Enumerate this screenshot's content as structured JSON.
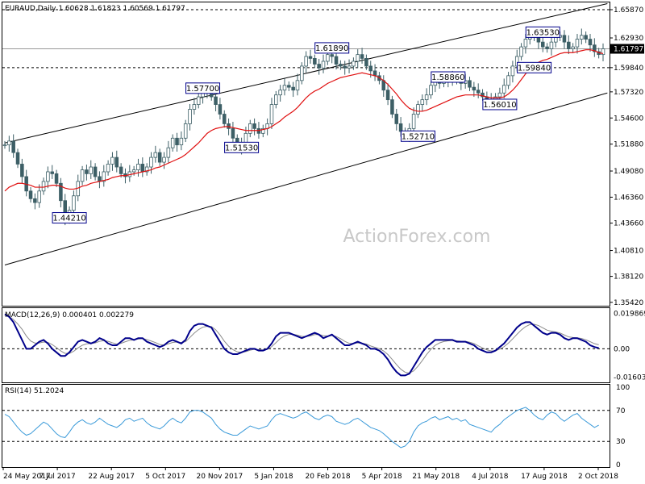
{
  "chart_data": [
    {
      "type": "candlestick",
      "title": "EURAUD,Daily  1.60628 1.61823 1.60569 1.61797",
      "current_price_label": "1.61797",
      "ylim": [
        1.354,
        1.6587
      ],
      "y_ticks": [
        1.3542,
        1.3812,
        1.4081,
        1.4366,
        1.4636,
        1.4908,
        1.5188,
        1.546,
        1.5732,
        1.5984,
        1.6293,
        1.6587
      ],
      "y_tick_labels": [
        "1.35420",
        "1.38120",
        "1.40810",
        "1.43660",
        "1.46360",
        "1.49080",
        "1.51880",
        "1.54600",
        "1.57320",
        "1.59840",
        "1.62930",
        "1.65870"
      ],
      "horizontal_levels": [
        {
          "price": 1.6587,
          "label": "1.65870",
          "style": "dashed"
        },
        {
          "price": 1.5984,
          "label": "1.59840",
          "style": "dashed"
        },
        {
          "price": 1.61797,
          "label": "1.61797",
          "style": "solid-grey"
        }
      ],
      "channel_upper": [
        {
          "x": 0,
          "price": 1.52
        },
        {
          "x": 140,
          "price": 1.665
        }
      ],
      "channel_lower": [
        {
          "x": 0,
          "price": 1.393
        },
        {
          "x": 140,
          "price": 1.572
        }
      ],
      "callouts": [
        {
          "label": "1.44210",
          "x": 15,
          "price": 1.4421
        },
        {
          "label": "1.57700",
          "x": 46,
          "price": 1.577
        },
        {
          "label": "1.51530",
          "x": 55,
          "price": 1.5153
        },
        {
          "label": "1.61890",
          "x": 76,
          "price": 1.6189
        },
        {
          "label": "1.52710",
          "x": 96,
          "price": 1.5271
        },
        {
          "label": "1.58860",
          "x": 103,
          "price": 1.5886
        },
        {
          "label": "1.56010",
          "x": 115,
          "price": 1.5601
        },
        {
          "label": "1.59840",
          "x": 123,
          "price": 1.5984
        },
        {
          "label": "1.63530",
          "x": 125,
          "price": 1.6353
        }
      ],
      "close_series": [
        1.518,
        1.522,
        1.51,
        1.498,
        1.485,
        1.47,
        1.462,
        1.458,
        1.47,
        1.48,
        1.49,
        1.488,
        1.478,
        1.46,
        1.44,
        1.45,
        1.465,
        1.48,
        1.492,
        1.488,
        1.495,
        1.485,
        1.48,
        1.49,
        1.498,
        1.505,
        1.495,
        1.488,
        1.485,
        1.49,
        1.492,
        1.498,
        1.49,
        1.495,
        1.505,
        1.51,
        1.5,
        1.505,
        1.515,
        1.525,
        1.518,
        1.525,
        1.54,
        1.555,
        1.56,
        1.568,
        1.572,
        1.575,
        1.568,
        1.56,
        1.55,
        1.54,
        1.535,
        1.525,
        1.52,
        1.515,
        1.53,
        1.54,
        1.535,
        1.53,
        1.535,
        1.54,
        1.56,
        1.57,
        1.575,
        1.58,
        1.578,
        1.575,
        1.585,
        1.6,
        1.61,
        1.608,
        1.602,
        1.598,
        1.605,
        1.612,
        1.61,
        1.602,
        1.6,
        1.598,
        1.6,
        1.605,
        1.612,
        1.608,
        1.6,
        1.595,
        1.59,
        1.585,
        1.575,
        1.565,
        1.55,
        1.54,
        1.532,
        1.528,
        1.535,
        1.55,
        1.56,
        1.565,
        1.57,
        1.58,
        1.585,
        1.582,
        1.585,
        1.588,
        1.585,
        1.588,
        1.582,
        1.585,
        1.578,
        1.575,
        1.572,
        1.568,
        1.565,
        1.562,
        1.568,
        1.572,
        1.58,
        1.59,
        1.6,
        1.61,
        1.62,
        1.628,
        1.632,
        1.63,
        1.625,
        1.62,
        1.618,
        1.625,
        1.63,
        1.632,
        1.625,
        1.618,
        1.62,
        1.628,
        1.632,
        1.628,
        1.622,
        1.615,
        1.612,
        1.618
      ],
      "ma_series": [
        1.47,
        1.474,
        1.476,
        1.478,
        1.478,
        1.477,
        1.476,
        1.474,
        1.474,
        1.474,
        1.475,
        1.476,
        1.476,
        1.475,
        1.473,
        1.472,
        1.472,
        1.473,
        1.475,
        1.476,
        1.478,
        1.479,
        1.48,
        1.481,
        1.482,
        1.484,
        1.485,
        1.486,
        1.486,
        1.487,
        1.488,
        1.489,
        1.49,
        1.491,
        1.492,
        1.494,
        1.495,
        1.497,
        1.499,
        1.501,
        1.503,
        1.505,
        1.508,
        1.512,
        1.516,
        1.52,
        1.525,
        1.53,
        1.533,
        1.535,
        1.536,
        1.537,
        1.537,
        1.536,
        1.535,
        1.534,
        1.533,
        1.533,
        1.533,
        1.533,
        1.534,
        1.535,
        1.537,
        1.54,
        1.543,
        1.547,
        1.55,
        1.553,
        1.557,
        1.562,
        1.567,
        1.571,
        1.574,
        1.576,
        1.579,
        1.582,
        1.584,
        1.586,
        1.588,
        1.589,
        1.59,
        1.591,
        1.592,
        1.593,
        1.592,
        1.591,
        1.59,
        1.588,
        1.585,
        1.581,
        1.576,
        1.571,
        1.565,
        1.56,
        1.556,
        1.554,
        1.553,
        1.553,
        1.554,
        1.556,
        1.558,
        1.56,
        1.562,
        1.564,
        1.566,
        1.568,
        1.569,
        1.57,
        1.57,
        1.57,
        1.57,
        1.569,
        1.568,
        1.567,
        1.567,
        1.567,
        1.568,
        1.571,
        1.575,
        1.58,
        1.586,
        1.592,
        1.597,
        1.601,
        1.604,
        1.606,
        1.607,
        1.609,
        1.611,
        1.613,
        1.614,
        1.614,
        1.614,
        1.615,
        1.616,
        1.617,
        1.617,
        1.616,
        1.614,
        1.613
      ],
      "watermark": "ActionForex.com"
    },
    {
      "type": "line",
      "title": "MACD(12,26,9) 0.000401 0.002279",
      "ylim": [
        -0.018,
        0.022
      ],
      "y_ticks": [
        0.019869,
        0.0,
        -0.01603
      ],
      "y_tick_labels": [
        "0.019869",
        "0.00",
        "-0.01603"
      ],
      "zero_line": 0.0,
      "macd_series": [
        0.0195,
        0.018,
        0.015,
        0.01,
        0.005,
        0.0,
        0.0,
        0.002,
        0.004,
        0.005,
        0.003,
        0.0,
        -0.002,
        -0.004,
        -0.004,
        -0.002,
        0.001,
        0.004,
        0.005,
        0.004,
        0.003,
        0.004,
        0.006,
        0.005,
        0.003,
        0.002,
        0.002,
        0.004,
        0.006,
        0.006,
        0.005,
        0.006,
        0.006,
        0.004,
        0.003,
        0.002,
        0.001,
        0.002,
        0.004,
        0.005,
        0.004,
        0.003,
        0.005,
        0.01,
        0.013,
        0.014,
        0.014,
        0.013,
        0.012,
        0.008,
        0.004,
        0.0,
        -0.002,
        -0.003,
        -0.003,
        -0.002,
        -0.001,
        0.0,
        0.0,
        -0.001,
        -0.001,
        0.0,
        0.003,
        0.007,
        0.009,
        0.009,
        0.009,
        0.008,
        0.007,
        0.006,
        0.007,
        0.008,
        0.009,
        0.008,
        0.006,
        0.007,
        0.008,
        0.006,
        0.004,
        0.002,
        0.002,
        0.003,
        0.004,
        0.003,
        0.002,
        0.0,
        0.0,
        -0.001,
        -0.003,
        -0.006,
        -0.01,
        -0.013,
        -0.015,
        -0.015,
        -0.014,
        -0.01,
        -0.006,
        -0.002,
        0.001,
        0.003,
        0.005,
        0.005,
        0.005,
        0.005,
        0.005,
        0.004,
        0.004,
        0.004,
        0.003,
        0.002,
        0.0,
        -0.001,
        -0.002,
        -0.002,
        -0.001,
        0.001,
        0.003,
        0.006,
        0.009,
        0.012,
        0.014,
        0.015,
        0.015,
        0.013,
        0.011,
        0.009,
        0.008,
        0.009,
        0.009,
        0.008,
        0.006,
        0.005,
        0.006,
        0.006,
        0.005,
        0.004,
        0.002,
        0.001,
        0.0004
      ],
      "signal_series": [
        0.019,
        0.0182,
        0.0165,
        0.014,
        0.011,
        0.0072,
        0.0044,
        0.0032,
        0.0033,
        0.0038,
        0.0036,
        0.0024,
        0.0007,
        -0.0012,
        -0.0026,
        -0.0026,
        -0.0014,
        0.0005,
        0.002,
        0.0028,
        0.003,
        0.0033,
        0.0042,
        0.0046,
        0.0042,
        0.0034,
        0.0027,
        0.0031,
        0.004,
        0.0048,
        0.005,
        0.0055,
        0.0058,
        0.0052,
        0.0044,
        0.0035,
        0.0024,
        0.0021,
        0.0028,
        0.0036,
        0.0038,
        0.0035,
        0.004,
        0.0064,
        0.0088,
        0.0108,
        0.0122,
        0.0127,
        0.0125,
        0.0107,
        0.0078,
        0.0043,
        0.0015,
        -0.0005,
        -0.0017,
        -0.002,
        -0.0016,
        -0.0008,
        -0.0003,
        -0.0005,
        -0.0006,
        -0.0003,
        0.0012,
        0.0035,
        0.0058,
        0.0073,
        0.0081,
        0.0082,
        0.0077,
        0.007,
        0.0069,
        0.0073,
        0.008,
        0.0081,
        0.0074,
        0.0072,
        0.0075,
        0.0069,
        0.0057,
        0.0042,
        0.0031,
        0.003,
        0.0033,
        0.0032,
        0.0027,
        0.0016,
        0.0008,
        0.0001,
        -0.0012,
        -0.0032,
        -0.006,
        -0.0089,
        -0.0115,
        -0.0132,
        -0.0137,
        -0.0124,
        -0.0098,
        -0.0066,
        -0.0032,
        -0.0003,
        0.002,
        0.0033,
        0.0041,
        0.0045,
        0.0047,
        0.0045,
        0.0043,
        0.0042,
        0.0037,
        0.003,
        0.0017,
        0.0005,
        -0.0006,
        -0.0012,
        -0.0011,
        -0.0002,
        0.0012,
        0.0032,
        0.0056,
        0.0082,
        0.0106,
        0.0125,
        0.0137,
        0.0138,
        0.0131,
        0.0118,
        0.0105,
        0.0099,
        0.0095,
        0.0089,
        0.0078,
        0.0067,
        0.0064,
        0.0062,
        0.0058,
        0.0051,
        0.004,
        0.0029,
        0.0023
      ]
    },
    {
      "type": "line",
      "title": "RSI(14) 51.2024",
      "ylim": [
        0,
        100
      ],
      "y_ticks": [
        100,
        70,
        30,
        0
      ],
      "y_tick_labels": [
        "100",
        "70",
        "30",
        "0"
      ],
      "levels": [
        70,
        30
      ],
      "rsi_series": [
        65,
        62,
        55,
        48,
        42,
        38,
        40,
        45,
        50,
        55,
        52,
        46,
        40,
        36,
        35,
        42,
        50,
        55,
        58,
        54,
        52,
        55,
        60,
        56,
        52,
        50,
        48,
        52,
        58,
        60,
        56,
        58,
        60,
        54,
        50,
        48,
        46,
        50,
        56,
        60,
        56,
        54,
        60,
        68,
        70,
        70,
        68,
        64,
        60,
        52,
        46,
        42,
        40,
        38,
        38,
        42,
        46,
        50,
        48,
        46,
        48,
        50,
        58,
        64,
        66,
        64,
        62,
        60,
        62,
        66,
        68,
        64,
        60,
        58,
        62,
        64,
        62,
        56,
        54,
        52,
        54,
        58,
        60,
        56,
        52,
        48,
        46,
        44,
        40,
        35,
        30,
        26,
        22,
        24,
        30,
        42,
        50,
        54,
        56,
        60,
        62,
        58,
        60,
        62,
        58,
        60,
        56,
        58,
        52,
        50,
        48,
        46,
        44,
        42,
        48,
        52,
        58,
        62,
        66,
        70,
        72,
        74,
        70,
        64,
        60,
        58,
        64,
        68,
        66,
        60,
        56,
        60,
        64,
        66,
        60,
        56,
        52,
        48,
        51
      ]
    }
  ],
  "x_axis": {
    "tick_labels": [
      "24 May 2017",
      "7 Jul 2017",
      "22 Aug 2017",
      "5 Oct 2017",
      "20 Nov 2017",
      "5 Jan 2018",
      "20 Feb 2018",
      "5 Apr 2018",
      "21 May 2018",
      "4 Jul 2018",
      "17 Aug 2018",
      "2 Oct 2018"
    ]
  },
  "colors": {
    "candle": "#3d5f66",
    "ma": "#e01010",
    "channel": "#000000",
    "macd": "#00008b",
    "signal": "#8c8c8c",
    "rsi": "#3a9ad9",
    "callout_border": "#00008b"
  }
}
